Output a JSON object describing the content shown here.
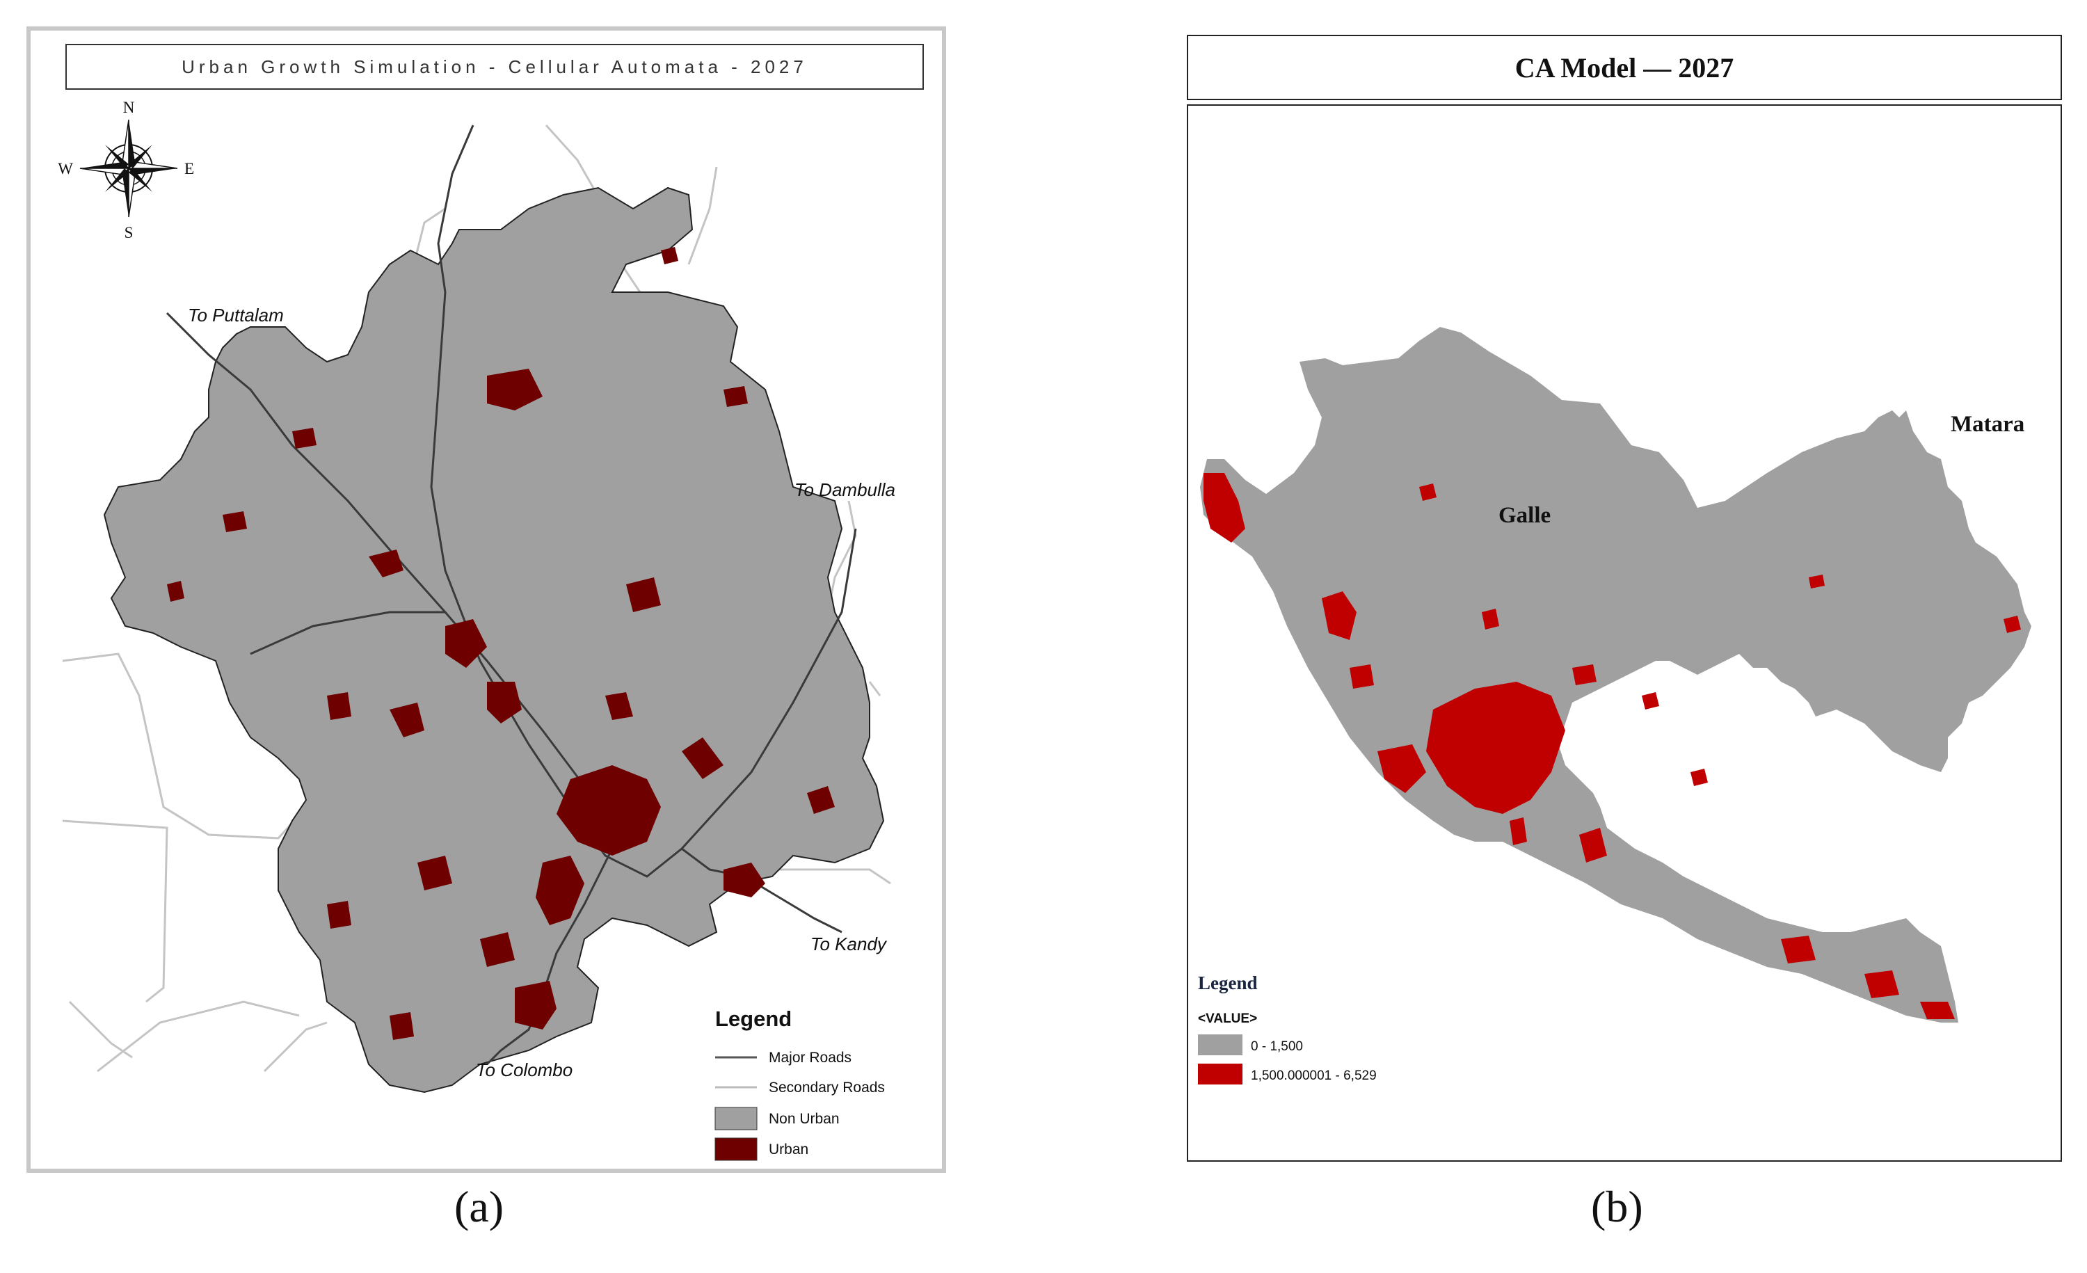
{
  "panel_a": {
    "title": "Urban Growth Simulation - Cellular Automata - 2027",
    "compass": {
      "n": "N",
      "s": "S",
      "e": "E",
      "w": "W"
    },
    "directions": {
      "puttalam": "To Puttalam",
      "dambulla": "To Dambulla",
      "kandy": "To Kandy",
      "colombo": "To Colombo"
    },
    "legend": {
      "title": "Legend",
      "items": [
        {
          "label": "Major Roads",
          "color": "#555555"
        },
        {
          "label": "Secondary Roads",
          "color": "#bbbbbb"
        },
        {
          "label": "Non Urban",
          "color": "#a0a0a0"
        },
        {
          "label": "Urban",
          "color": "#6e0000"
        }
      ]
    },
    "caption": "(a)"
  },
  "panel_b": {
    "title": "CA Model — 2027",
    "places": {
      "galle": "Galle",
      "matara": "Matara"
    },
    "legend": {
      "title": "Legend",
      "field": "<VALUE>",
      "items": [
        {
          "label": "0 - 1,500",
          "color": "#a0a0a0"
        },
        {
          "label": "1,500.000001 - 6,529",
          "color": "#c00000"
        }
      ]
    },
    "caption": "(b)"
  }
}
